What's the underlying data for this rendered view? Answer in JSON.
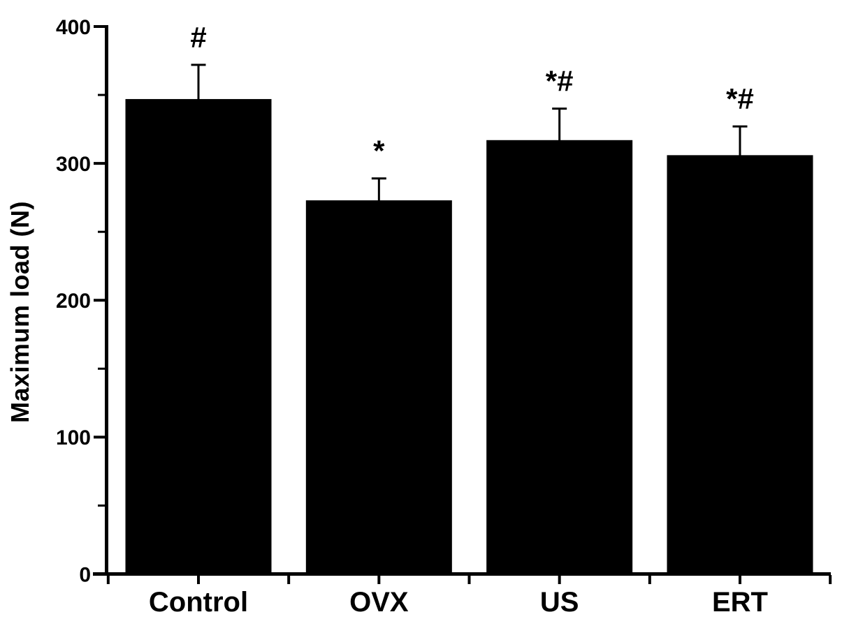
{
  "chart_data": {
    "type": "bar",
    "title": "",
    "xlabel": "",
    "ylabel": "Maximum load (N)",
    "categories": [
      "Control",
      "OVX",
      "US",
      "ERT"
    ],
    "values": [
      347,
      273,
      317,
      306
    ],
    "errors": [
      25,
      16,
      23,
      21
    ],
    "annotations": [
      "#",
      "*",
      "*#",
      "*#"
    ],
    "ylim": [
      0,
      400
    ],
    "yticks": [
      0,
      100,
      200,
      300,
      400
    ],
    "yticks_minor": [
      50,
      150,
      250,
      350
    ],
    "grid": false,
    "legend": null,
    "bar_color": "#000000",
    "axis_color": "#000000",
    "background_color": "#ffffff",
    "error_bar_direction": "up"
  }
}
